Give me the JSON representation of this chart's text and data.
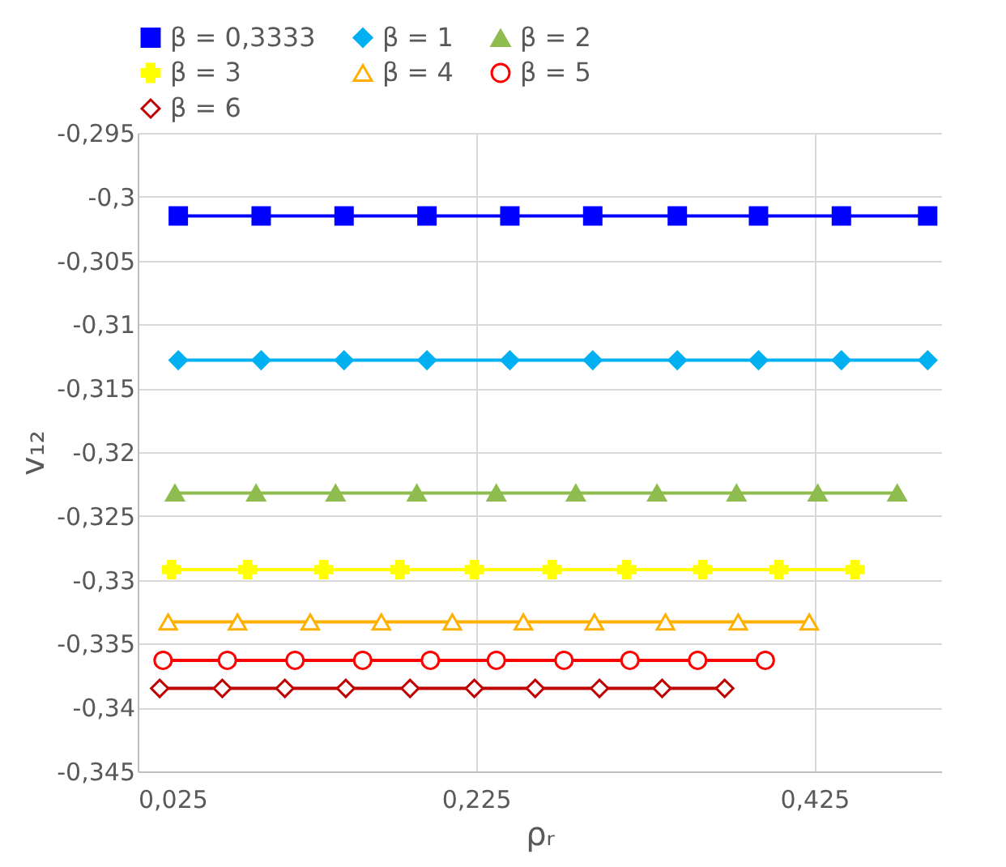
{
  "chart_data": {
    "type": "line",
    "xlabel": "ρᵣ",
    "ylabel": "v₁₂",
    "xlim": [
      0.025,
      0.5
    ],
    "xticks": [
      {
        "value": 0.025,
        "label": "0,025"
      },
      {
        "value": 0.225,
        "label": "0,225"
      },
      {
        "value": 0.425,
        "label": "0,425"
      }
    ],
    "ylim": [
      -0.345,
      -0.295
    ],
    "yticks": [
      {
        "value": -0.345,
        "label": "-0,345"
      },
      {
        "value": -0.34,
        "label": "-0,34"
      },
      {
        "value": -0.335,
        "label": "-0,335"
      },
      {
        "value": -0.33,
        "label": "-0,33"
      },
      {
        "value": -0.325,
        "label": "-0,325"
      },
      {
        "value": -0.32,
        "label": "-0,32"
      },
      {
        "value": -0.315,
        "label": "-0,315"
      },
      {
        "value": -0.31,
        "label": "-0,31"
      },
      {
        "value": -0.305,
        "label": "-0,305"
      },
      {
        "value": -0.3,
        "label": "-0,3"
      },
      {
        "value": -0.295,
        "label": "-0,295"
      }
    ],
    "grid": true,
    "legend": "top",
    "line_style": "solid",
    "series": [
      {
        "name": "β = 0,3333",
        "color": "#0000ff",
        "marker": "square",
        "x": [
          0.049,
          0.098,
          0.147,
          0.196,
          0.245,
          0.294,
          0.344,
          0.392,
          0.441,
          0.492
        ],
        "values": [
          -0.3015,
          -0.3015,
          -0.3015,
          -0.3015,
          -0.3015,
          -0.3015,
          -0.3015,
          -0.3015,
          -0.3015,
          -0.3015
        ]
      },
      {
        "name": "β = 1",
        "color": "#00b0f0",
        "marker": "diamond",
        "x": [
          0.049,
          0.098,
          0.147,
          0.196,
          0.245,
          0.294,
          0.344,
          0.392,
          0.441,
          0.492
        ],
        "values": [
          -0.3128,
          -0.3128,
          -0.3128,
          -0.3128,
          -0.3128,
          -0.3128,
          -0.3128,
          -0.3128,
          -0.3128,
          -0.3128
        ]
      },
      {
        "name": "β = 2",
        "color": "#8fbc4f",
        "marker": "triangle",
        "x": [
          0.047,
          0.095,
          0.142,
          0.19,
          0.237,
          0.284,
          0.332,
          0.379,
          0.427,
          0.474
        ],
        "values": [
          -0.3232,
          -0.3232,
          -0.3232,
          -0.3232,
          -0.3232,
          -0.3232,
          -0.3232,
          -0.3232,
          -0.3232,
          -0.3232
        ]
      },
      {
        "name": "β = 3",
        "color": "#ffff00",
        "marker": "cross",
        "x": [
          0.045,
          0.09,
          0.135,
          0.18,
          0.224,
          0.27,
          0.314,
          0.359,
          0.404,
          0.449
        ],
        "values": [
          -0.3292,
          -0.3292,
          -0.3292,
          -0.3292,
          -0.3292,
          -0.3292,
          -0.3292,
          -0.3292,
          -0.3292,
          -0.3292
        ]
      },
      {
        "name": "β = 4",
        "color": "#ffb000",
        "marker": "triangle",
        "x": [
          0.043,
          0.084,
          0.127,
          0.169,
          0.211,
          0.253,
          0.295,
          0.337,
          0.38,
          0.422
        ],
        "values": [
          -0.3333,
          -0.3333,
          -0.3333,
          -0.3333,
          -0.3333,
          -0.3333,
          -0.3333,
          -0.3333,
          -0.3333,
          -0.3333
        ]
      },
      {
        "name": "β = 5",
        "color": "#ff0000",
        "marker": "circle",
        "x": [
          0.04,
          0.078,
          0.118,
          0.158,
          0.198,
          0.237,
          0.277,
          0.316,
          0.356,
          0.396
        ],
        "values": [
          -0.3363,
          -0.3363,
          -0.3363,
          -0.3363,
          -0.3363,
          -0.3363,
          -0.3363,
          -0.3363,
          -0.3363,
          -0.3363
        ]
      },
      {
        "name": "β = 6",
        "color": "#c00000",
        "marker": "diamond",
        "x": [
          0.038,
          0.075,
          0.112,
          0.148,
          0.186,
          0.224,
          0.26,
          0.298,
          0.335,
          0.372
        ],
        "values": [
          -0.3385,
          -0.3385,
          -0.3385,
          -0.3385,
          -0.3385,
          -0.3385,
          -0.3385,
          -0.3385,
          -0.3385,
          -0.3385
        ]
      }
    ]
  }
}
